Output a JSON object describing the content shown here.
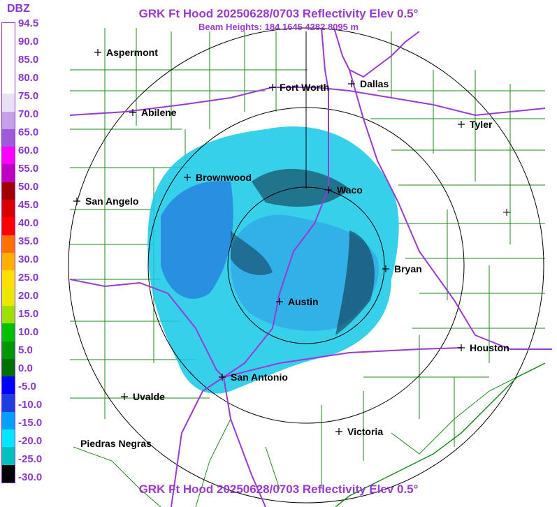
{
  "title": "GRK Ft Hood 20250628/0703 Reflectivity Elev 0.5°",
  "beam_heights": "Beam Heights: 184 1645 4282 8095 m",
  "footer_title": "GRK Ft Hood 20250628/0703 Reflectivity Elev 0.5°",
  "legend": {
    "unit": "DBZ",
    "labels": [
      "94.5",
      "90.0",
      "85.0",
      "80.0",
      "75.0",
      "70.0",
      "65.0",
      "60.0",
      "55.0",
      "50.0",
      "45.0",
      "40.0",
      "35.0",
      "30.0",
      "25.0",
      "20.0",
      "15.0",
      "10.0",
      "5.0",
      "0.0",
      "-5.0",
      "-10.0",
      "-15.0",
      "-20.0",
      "-25.0",
      "-30.0"
    ],
    "colors": [
      "#ffffff",
      "#ffffff",
      "#ffffff",
      "#ffffff",
      "#e8e0f4",
      "#c7a0e8",
      "#9e5ad8",
      "#ff00ff",
      "#c000c0",
      "#a00000",
      "#d80000",
      "#ff0000",
      "#ff7000",
      "#ffb000",
      "#ffe000",
      "#e8e800",
      "#a0e000",
      "#00c000",
      "#009800",
      "#007000",
      "#0000ff",
      "#1f3ce0",
      "#00a0ff",
      "#00e8ff",
      "#00c0c0",
      "#000000"
    ]
  },
  "cities": [
    {
      "name": "Aspermont"
    },
    {
      "name": "Abilene"
    },
    {
      "name": "Fort Worth"
    },
    {
      "name": "Dallas"
    },
    {
      "name": "Tyler"
    },
    {
      "name": "Brownwood"
    },
    {
      "name": "Waco"
    },
    {
      "name": "San Angelo"
    },
    {
      "name": "Bryan"
    },
    {
      "name": "Austin"
    },
    {
      "name": "Houston"
    },
    {
      "name": "San Antonio"
    },
    {
      "name": "Uvalde"
    },
    {
      "name": "Victoria"
    },
    {
      "name": "Piedras Negras"
    }
  ],
  "colors": {
    "accent": "#8a35d8",
    "highways": "#9a39d8",
    "counties": "#1a8a1a",
    "rings": "#000000"
  }
}
